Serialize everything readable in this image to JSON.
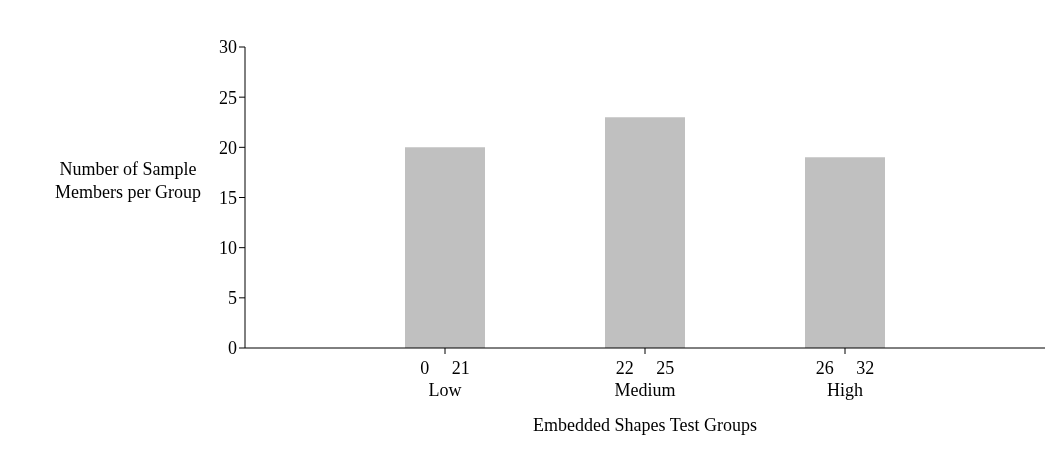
{
  "chart_data": {
    "type": "bar",
    "categories": [
      "0     21\nLow",
      "22     25\nMedium",
      "26     32\nHigh"
    ],
    "values": [
      20,
      23,
      19
    ],
    "color": "#c0c0c0",
    "ylim": [
      0,
      30
    ],
    "yticks": [
      0,
      5,
      10,
      15,
      20,
      25,
      30
    ],
    "ylabel": "Number of Sample Members per Group",
    "xlabel": "Embedded Shapes Test Groups",
    "grid": false,
    "legend": false
  }
}
